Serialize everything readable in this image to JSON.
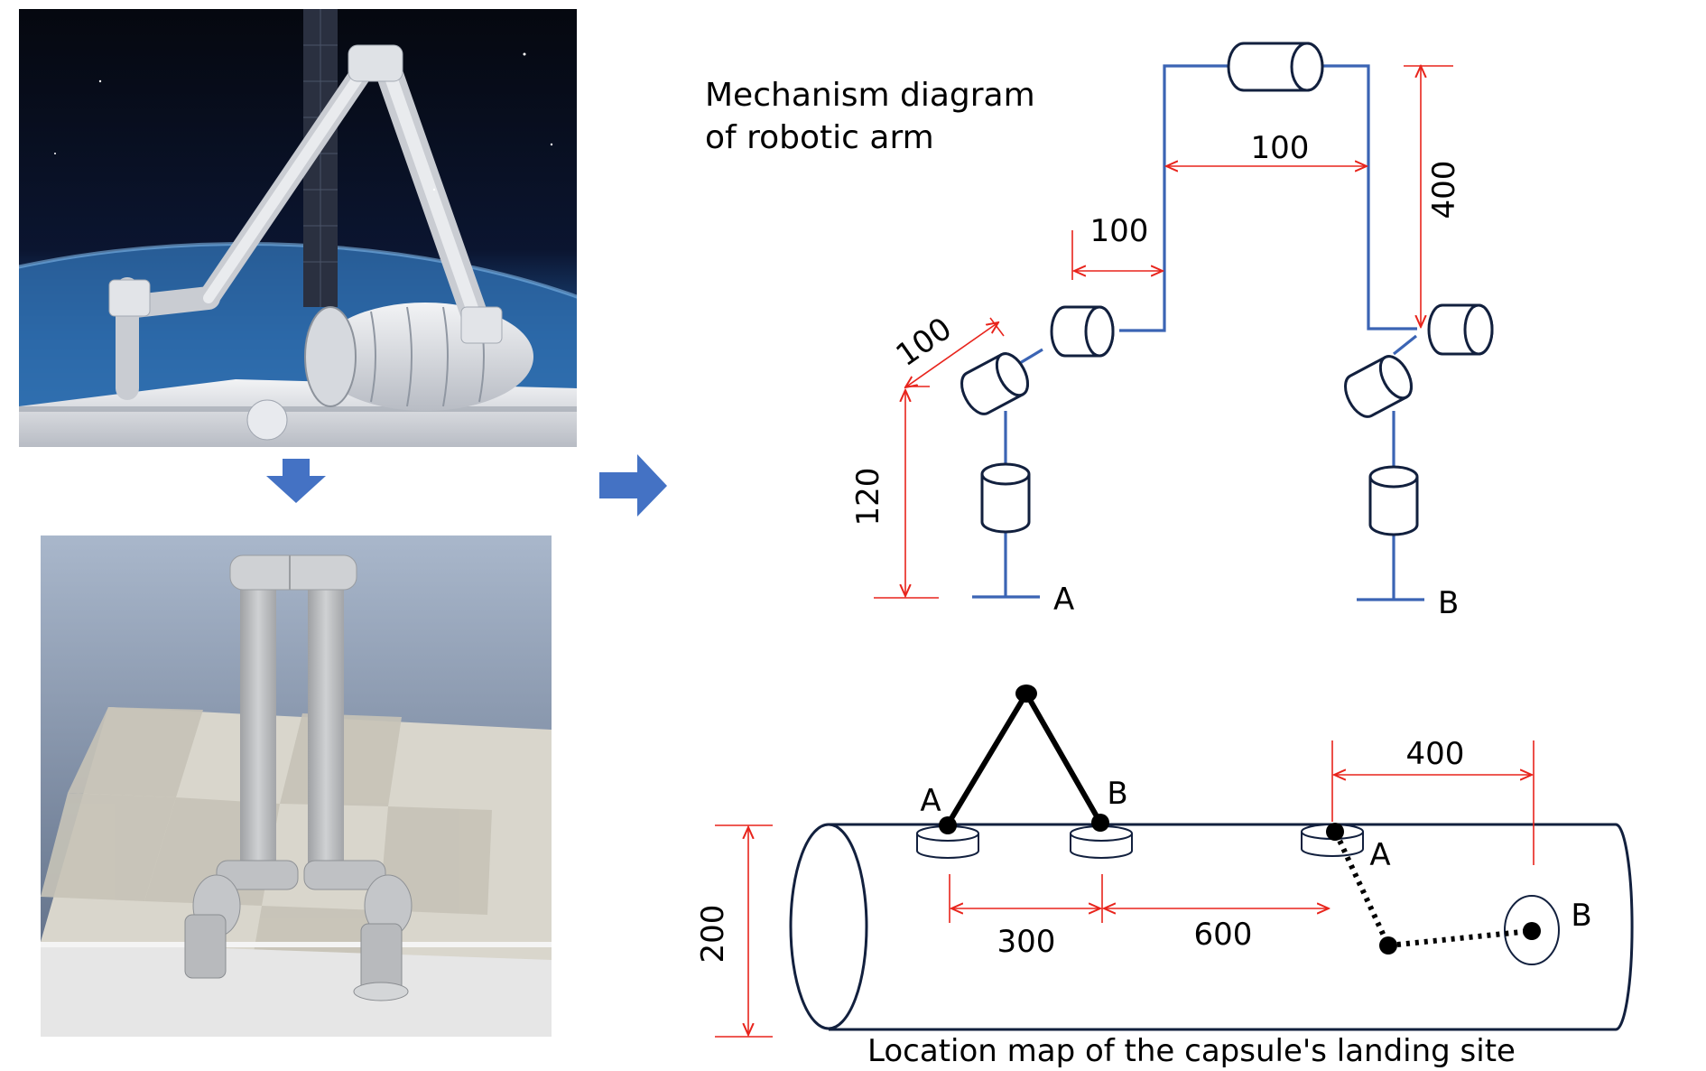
{
  "images": {
    "space_photo": "space-station-robotic-arm-photo",
    "simulation_render": "dual-arm-simulation-render"
  },
  "mechanism_diagram": {
    "title_line1": "Mechanism diagram",
    "title_line2": "of robotic arm",
    "dims": {
      "top_span": "100",
      "vertical_right": "400",
      "left_offset": "100",
      "diagonal_link": "100",
      "base_height": "120"
    },
    "base_a": "A",
    "base_b": "B"
  },
  "landing_map": {
    "caption": "Location map of the capsule's landing site",
    "diameter": "200",
    "spacing_ab": "300",
    "spacing_mid": "600",
    "spacing_target": "400",
    "site_a_left": "A",
    "site_b_left": "B",
    "site_a_right": "A",
    "site_b_right": "B"
  },
  "colors": {
    "arm_blue": "#3b64b4",
    "dimension_red": "#e8241c",
    "cylinder_outline": "#12203e",
    "arrow_blue": "#4472c4"
  }
}
